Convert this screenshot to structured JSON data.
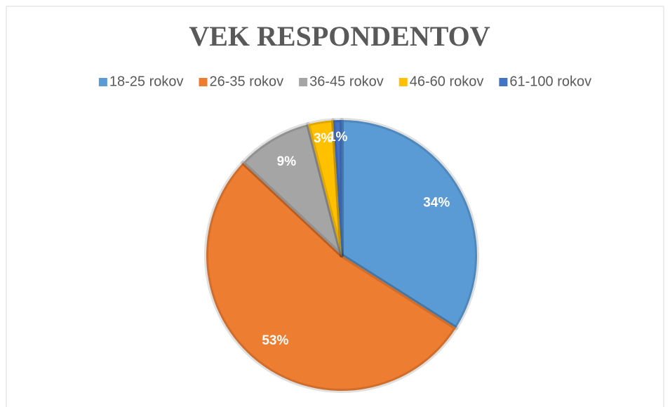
{
  "chart_data": {
    "type": "pie",
    "title": "VEK RESPONDENTOV",
    "categories": [
      "18-25 rokov",
      "26-35 rokov",
      "36-45 rokov",
      "46-60 rokov",
      "61-100 rokov"
    ],
    "values": [
      34,
      53,
      9,
      3,
      1
    ],
    "value_labels": [
      "34%",
      "53%",
      "9%",
      "3%",
      "1%"
    ],
    "colors": [
      "#5b9bd5",
      "#ed7d31",
      "#a5a5a5",
      "#ffc000",
      "#4472c4"
    ],
    "legend": "top"
  }
}
